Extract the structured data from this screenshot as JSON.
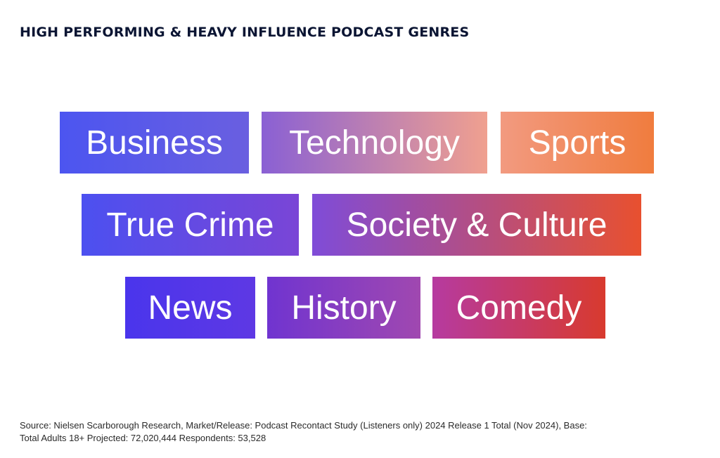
{
  "header": {
    "title": "HIGH PERFORMING & HEAVY INFLUENCE PODCAST GENRES"
  },
  "genres": [
    {
      "label": "Business",
      "gradient": [
        "#4c55f0",
        "#6a5fe0"
      ]
    },
    {
      "label": "Technology",
      "gradient": [
        "#8a60d4",
        "#f0a08f"
      ]
    },
    {
      "label": "Sports",
      "gradient": [
        "#f29a80",
        "#f07c3e"
      ]
    },
    {
      "label": "True Crime",
      "gradient": [
        "#4c50f0",
        "#7a45d6"
      ]
    },
    {
      "label": "Society & Culture",
      "gradient": [
        "#7f4cd8",
        "#e8502f"
      ]
    },
    {
      "label": "News",
      "gradient": [
        "#4a35ec",
        "#5e38e4"
      ]
    },
    {
      "label": "History",
      "gradient": [
        "#7034d0",
        "#a048b0"
      ]
    },
    {
      "label": "Comedy",
      "gradient": [
        "#b63aa0",
        "#d83a2e"
      ]
    }
  ],
  "footer": {
    "source_line1": "Source: Nielsen Scarborough Research, Market/Release: Podcast Recontact Study (Listeners only) 2024 Release 1 Total (Nov 2024), Base:",
    "source_line2": "Total Adults 18+ Projected: 72,020,444 Respondents: 53,528"
  }
}
